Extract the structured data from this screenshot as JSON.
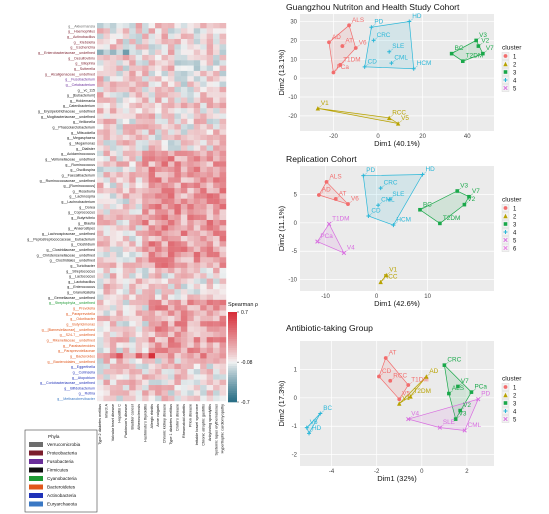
{
  "heatmap": {
    "rows": [
      {
        "label": "g__Akkermansia",
        "phylum": "Verrucomicrobia"
      },
      {
        "label": "g__Haemophilus",
        "phylum": "Proteobacteria"
      },
      {
        "label": "g__Actinobacillus",
        "phylum": "Proteobacteria"
      },
      {
        "label": "g__Klebsiella",
        "phylum": "Proteobacteria"
      },
      {
        "label": "g__Escherichia",
        "phylum": "Proteobacteria"
      },
      {
        "label": "g__Enterobacteriaceae__undefined",
        "phylum": "Proteobacteria"
      },
      {
        "label": "g__Desulfovibrio",
        "phylum": "Proteobacteria"
      },
      {
        "label": "g__Bilophila",
        "phylum": "Proteobacteria"
      },
      {
        "label": "g__Sutterella",
        "phylum": "Proteobacteria"
      },
      {
        "label": "g__Alcaligenaceae__undefined",
        "phylum": "Proteobacteria"
      },
      {
        "label": "g__Fusobacterium",
        "phylum": "Fusobacteria"
      },
      {
        "label": "g__Cetobacterium",
        "phylum": "Fusobacteria"
      },
      {
        "label": "g__vc_115",
        "phylum": "Firmicutes"
      },
      {
        "label": "g__[Eubacterium]",
        "phylum": "Firmicutes"
      },
      {
        "label": "g__Holdemania",
        "phylum": "Firmicutes"
      },
      {
        "label": "g__Catenibacterium",
        "phylum": "Firmicutes"
      },
      {
        "label": "g__Erysipelotrichaceae__undefined",
        "phylum": "Firmicutes"
      },
      {
        "label": "g__Mogibacteriaceae__undefined",
        "phylum": "Firmicutes"
      },
      {
        "label": "g__Veillonella",
        "phylum": "Firmicutes"
      },
      {
        "label": "g__Phascolarctobacterium",
        "phylum": "Firmicutes"
      },
      {
        "label": "g__Mitsuokella",
        "phylum": "Firmicutes"
      },
      {
        "label": "g__Megasphaera",
        "phylum": "Firmicutes"
      },
      {
        "label": "g__Megamonas",
        "phylum": "Firmicutes"
      },
      {
        "label": "g__Dialister",
        "phylum": "Firmicutes"
      },
      {
        "label": "g__Acidaminococcus",
        "phylum": "Firmicutes"
      },
      {
        "label": "g__Veillonellaceae__undefined",
        "phylum": "Firmicutes"
      },
      {
        "label": "g__Ruminococcus",
        "phylum": "Firmicutes"
      },
      {
        "label": "g__Oscillospira",
        "phylum": "Firmicutes"
      },
      {
        "label": "g__Faecalibacterium",
        "phylum": "Firmicutes"
      },
      {
        "label": "g__Ruminococcaceae__undefined",
        "phylum": "Firmicutes"
      },
      {
        "label": "g__[Ruminococcus]",
        "phylum": "Firmicutes"
      },
      {
        "label": "g__Roseburia",
        "phylum": "Firmicutes"
      },
      {
        "label": "g__Lachnospira",
        "phylum": "Firmicutes"
      },
      {
        "label": "g__Lachnobacterium",
        "phylum": "Firmicutes"
      },
      {
        "label": "g__Dorea",
        "phylum": "Firmicutes"
      },
      {
        "label": "g__Coprococcus",
        "phylum": "Firmicutes"
      },
      {
        "label": "g__Butyrivibrio",
        "phylum": "Firmicutes"
      },
      {
        "label": "g__Blautia",
        "phylum": "Firmicutes"
      },
      {
        "label": "g__Anaerostipes",
        "phylum": "Firmicutes"
      },
      {
        "label": "g__Lachnospiraceae__undefined",
        "phylum": "Firmicutes"
      },
      {
        "label": "g__Peptostreptococcaceae__Eubacterium",
        "phylum": "Firmicutes"
      },
      {
        "label": "g__Clostridium",
        "phylum": "Firmicutes"
      },
      {
        "label": "g__Clostridiaceae__undefined",
        "phylum": "Firmicutes"
      },
      {
        "label": "g__Christensenellaceae__undefined",
        "phylum": "Firmicutes"
      },
      {
        "label": "g__Clostridiales__undefined",
        "phylum": "Firmicutes"
      },
      {
        "label": "g__Turicibacter",
        "phylum": "Firmicutes"
      },
      {
        "label": "g__Streptococcus",
        "phylum": "Firmicutes"
      },
      {
        "label": "g__Lactococcus",
        "phylum": "Firmicutes"
      },
      {
        "label": "g__Lactobacillus",
        "phylum": "Firmicutes"
      },
      {
        "label": "g__Enterococcus",
        "phylum": "Firmicutes"
      },
      {
        "label": "g__Granulicatella",
        "phylum": "Firmicutes"
      },
      {
        "label": "g__Gemellaceae__undefined",
        "phylum": "Firmicutes"
      },
      {
        "label": "g__Streptophyta__undefined",
        "phylum": "Cyanobacteria"
      },
      {
        "label": "g__Prevotella",
        "phylum": "Bacteroidetes"
      },
      {
        "label": "g__Paraprevotella",
        "phylum": "Bacteroidetes"
      },
      {
        "label": "g__Odoribacter",
        "phylum": "Bacteroidetes"
      },
      {
        "label": "g__Butyricimonas",
        "phylum": "Bacteroidetes"
      },
      {
        "label": "g__[Barnesiellaceae]__undefined",
        "phylum": "Bacteroidetes"
      },
      {
        "label": "g__S24-7__undefined",
        "phylum": "Bacteroidetes"
      },
      {
        "label": "g__Rikenellaceae__undefined",
        "phylum": "Bacteroidetes"
      },
      {
        "label": "g__Parabacteroides",
        "phylum": "Bacteroidetes"
      },
      {
        "label": "g__Paraprevotellaceae",
        "phylum": "Bacteroidetes"
      },
      {
        "label": "g__Bacteroides",
        "phylum": "Bacteroidetes"
      },
      {
        "label": "g__Bacteroidales__undefined",
        "phylum": "Bacteroidetes"
      },
      {
        "label": "g__Eggerthella",
        "phylum": "Actinobacteria"
      },
      {
        "label": "g__Collinsella",
        "phylum": "Actinobacteria"
      },
      {
        "label": "g__Atopobium",
        "phylum": "Actinobacteria"
      },
      {
        "label": "g__Coriobacteriaceae__undefined",
        "phylum": "Actinobacteria"
      },
      {
        "label": "g__Bifidobacterium",
        "phylum": "Actinobacteria"
      },
      {
        "label": "g__Rothia",
        "phylum": "Actinobacteria"
      },
      {
        "label": "g__Methanobrevibacter",
        "phylum": "Euryarchaeota"
      }
    ],
    "columns": [
      "Type 2 diabetes mellitus",
      "Infarct A",
      "Valvular heart disease",
      "Hepatitis C",
      "Parkinson's disease",
      "Bladder cancer",
      "Atherosclerosis",
      "Hashimoto's thyroiditis",
      "Allergic rhinitis",
      "Acne vulgaris",
      "Chronic kidney disease",
      "Type 1 diabetes mellitus",
      "Crohn's disease",
      "Rheumatoid arthritis",
      "Prion disease",
      "Irritable bowel syndrome",
      "Chronic atrophic gastritis",
      "Ankylosing spondylitis",
      "Systemic lupus erythematosus",
      "Hypertrophic cardiomyopathy"
    ],
    "scale": {
      "title": "Spearman ρ",
      "max_label": "0.7",
      "mid_label": "-0.08",
      "min_label": "-0.7",
      "max": 0.7,
      "min": -0.7,
      "mid": -0.08
    },
    "phylum_legend": {
      "title": "Phyla",
      "items": [
        {
          "name": "Verrucomicrobia",
          "color": "#6d6d6d"
        },
        {
          "name": "Proteobacteria",
          "color": "#7b1d2c"
        },
        {
          "name": "Fusobacteria",
          "color": "#6a2e9a"
        },
        {
          "name": "Firmicutes",
          "color": "#111111"
        },
        {
          "name": "Cyanobacteria",
          "color": "#1e9a34"
        },
        {
          "name": "Bacteroidetes",
          "color": "#e0571b"
        },
        {
          "name": "Actinobacteria",
          "color": "#2032b8"
        },
        {
          "name": "Euryarchaeota",
          "color": "#3a78c4"
        }
      ]
    }
  },
  "clusters": {
    "title": "cluster",
    "items": [
      {
        "id": "1",
        "color": "#f26d6d"
      },
      {
        "id": "2",
        "color": "#b8a200"
      },
      {
        "id": "3",
        "color": "#1aa84a"
      },
      {
        "id": "4",
        "color": "#2bb7d8"
      },
      {
        "id": "5",
        "color": "#d86ee0"
      },
      {
        "id": "6",
        "color": "#e87be6"
      }
    ]
  },
  "chart_data": [
    {
      "type": "scatter",
      "title": "Guangzhou Nutriton and Health Study Cohort",
      "xlabel": "Dim1 (40.1%)",
      "ylabel": "Dim2 (13.1%)",
      "xlim": [
        -35,
        52
      ],
      "ylim": [
        -28,
        34
      ],
      "xticks": [
        -20,
        0,
        20,
        40
      ],
      "yticks": [
        -20,
        -10,
        0,
        10,
        20,
        30
      ],
      "points": [
        {
          "label": "ALS",
          "x": -13,
          "y": 28,
          "cluster": "1"
        },
        {
          "label": "AD",
          "x": -22,
          "y": 19,
          "cluster": "1"
        },
        {
          "label": "AT",
          "x": -16,
          "y": 17,
          "cluster": "1"
        },
        {
          "label": "V6",
          "x": -10,
          "y": 16,
          "cluster": "1"
        },
        {
          "label": "T1DM",
          "x": -17,
          "y": 7,
          "cluster": "1"
        },
        {
          "label": "PCa",
          "x": -20,
          "y": 3,
          "cluster": "1"
        },
        {
          "label": "V1",
          "x": -27,
          "y": -16,
          "cluster": "2"
        },
        {
          "label": "RCC",
          "x": 5,
          "y": -21,
          "cluster": "2"
        },
        {
          "label": "V5",
          "x": 9,
          "y": -24,
          "cluster": "2"
        },
        {
          "label": "BC",
          "x": 33,
          "y": 13,
          "cluster": "3"
        },
        {
          "label": "V3",
          "x": 44,
          "y": 20,
          "cluster": "3"
        },
        {
          "label": "V2",
          "x": 45,
          "y": 17,
          "cluster": "3"
        },
        {
          "label": "V7",
          "x": 47,
          "y": 13,
          "cluster": "3"
        },
        {
          "label": "T2DM",
          "x": 38,
          "y": 9,
          "cluster": "3"
        },
        {
          "label": "PD",
          "x": -3,
          "y": 27,
          "cluster": "4"
        },
        {
          "label": "HD",
          "x": 14,
          "y": 30,
          "cluster": "4"
        },
        {
          "label": "CRC",
          "x": -2,
          "y": 20,
          "cluster": "4"
        },
        {
          "label": "SLE",
          "x": 5,
          "y": 14,
          "cluster": "4"
        },
        {
          "label": "CD",
          "x": -6,
          "y": 6,
          "cluster": "4"
        },
        {
          "label": "CML",
          "x": 6,
          "y": 8,
          "cluster": "4"
        },
        {
          "label": "HCM",
          "x": 16,
          "y": 5,
          "cluster": "4"
        }
      ]
    },
    {
      "type": "scatter",
      "title": "Replication Cohort",
      "xlabel": "Dim1 (42.6%)",
      "ylabel": "Dim2 (11.1%)",
      "xlim": [
        -15,
        23
      ],
      "ylim": [
        -12,
        10
      ],
      "xticks": [
        -10,
        0,
        10
      ],
      "yticks": [
        -10,
        -5,
        0,
        5
      ],
      "points": [
        {
          "label": "ALS",
          "x": -9.8,
          "y": 7.2,
          "cluster": "1"
        },
        {
          "label": "AD",
          "x": -11.3,
          "y": 4.9,
          "cluster": "1"
        },
        {
          "label": "AT",
          "x": -8.0,
          "y": 4.2,
          "cluster": "1"
        },
        {
          "label": "V6",
          "x": -5.6,
          "y": 3.3,
          "cluster": "1"
        },
        {
          "label": "RCC",
          "x": 0.8,
          "y": -10.4,
          "cluster": "2"
        },
        {
          "label": "V1",
          "x": 1.9,
          "y": -9.2,
          "cluster": "2"
        },
        {
          "label": "BC",
          "x": 8.5,
          "y": 2.3,
          "cluster": "3"
        },
        {
          "label": "V3",
          "x": 15.8,
          "y": 5.6,
          "cluster": "3"
        },
        {
          "label": "V7",
          "x": 18.1,
          "y": 4.6,
          "cluster": "3"
        },
        {
          "label": "V2",
          "x": 17.2,
          "y": 3.2,
          "cluster": "3"
        },
        {
          "label": "T2DM",
          "x": 12.4,
          "y": -0.1,
          "cluster": "3"
        },
        {
          "label": "PD",
          "x": -2.6,
          "y": 8.3,
          "cluster": "4"
        },
        {
          "label": "HD",
          "x": 9.0,
          "y": 8.5,
          "cluster": "4"
        },
        {
          "label": "CRC",
          "x": 0.8,
          "y": 6.1,
          "cluster": "4"
        },
        {
          "label": "SLE",
          "x": 2.5,
          "y": 4.1,
          "cluster": "4"
        },
        {
          "label": "CML",
          "x": 0.3,
          "y": 3.1,
          "cluster": "4"
        },
        {
          "label": "CD",
          "x": -1.6,
          "y": 1.2,
          "cluster": "4"
        },
        {
          "label": "HCM",
          "x": 3.3,
          "y": -0.4,
          "cluster": "4"
        },
        {
          "label": "T1DM",
          "x": -9.3,
          "y": -0.2,
          "cluster": "5"
        },
        {
          "label": "PCa",
          "x": -11.6,
          "y": -3.3,
          "cluster": "5"
        },
        {
          "label": "V4",
          "x": -6.4,
          "y": -5.3,
          "cluster": "5"
        }
      ]
    },
    {
      "type": "scatter",
      "title": "Antibiotic-taking Group",
      "xlabel": "Dim1 (32%)",
      "ylabel": "Dim2 (17.3%)",
      "xlim": [
        -5.4,
        3.2
      ],
      "ylim": [
        -2.4,
        2.0
      ],
      "xticks": [
        -4,
        -2,
        0,
        2
      ],
      "yticks": [
        -2,
        -1,
        0,
        1
      ],
      "points": [
        {
          "label": "AT",
          "x": -1.6,
          "y": 1.4,
          "cluster": "1"
        },
        {
          "label": "CD",
          "x": -1.9,
          "y": 0.75,
          "cluster": "1"
        },
        {
          "label": "RCC",
          "x": -1.4,
          "y": 0.6,
          "cluster": "1"
        },
        {
          "label": "T1DM",
          "x": -0.6,
          "y": 0.45,
          "cluster": "1"
        },
        {
          "label": "V5",
          "x": -1.0,
          "y": -0.05,
          "cluster": "1"
        },
        {
          "label": "AD",
          "x": 0.2,
          "y": 0.75,
          "cluster": "2"
        },
        {
          "label": "T2DM",
          "x": -0.5,
          "y": 0.05,
          "cluster": "2"
        },
        {
          "label": "V1",
          "x": -1.0,
          "y": -0.2,
          "cluster": "2"
        },
        {
          "label": "CRC",
          "x": 1.0,
          "y": 1.15,
          "cluster": "3"
        },
        {
          "label": "ALS",
          "x": 1.2,
          "y": 0.15,
          "cluster": "3"
        },
        {
          "label": "V7",
          "x": 1.6,
          "y": 0.4,
          "cluster": "3"
        },
        {
          "label": "PCa",
          "x": 2.2,
          "y": 0.2,
          "cluster": "3"
        },
        {
          "label": "V2",
          "x": 1.7,
          "y": -0.45,
          "cluster": "3"
        },
        {
          "label": "V3",
          "x": 1.5,
          "y": -0.75,
          "cluster": "3"
        },
        {
          "label": "BC",
          "x": -4.5,
          "y": -0.55,
          "cluster": "4"
        },
        {
          "label": "V6",
          "x": -5.1,
          "y": -1.05,
          "cluster": "4"
        },
        {
          "label": "HD",
          "x": -5.0,
          "y": -1.25,
          "cluster": "4"
        },
        {
          "label": "PD",
          "x": 2.5,
          "y": -0.05,
          "cluster": "5"
        },
        {
          "label": "V4",
          "x": -0.6,
          "y": -0.75,
          "cluster": "5"
        },
        {
          "label": "SLE",
          "x": 0.8,
          "y": -1.05,
          "cluster": "5"
        },
        {
          "label": "CML",
          "x": 1.9,
          "y": -1.15,
          "cluster": "5"
        }
      ]
    }
  ]
}
